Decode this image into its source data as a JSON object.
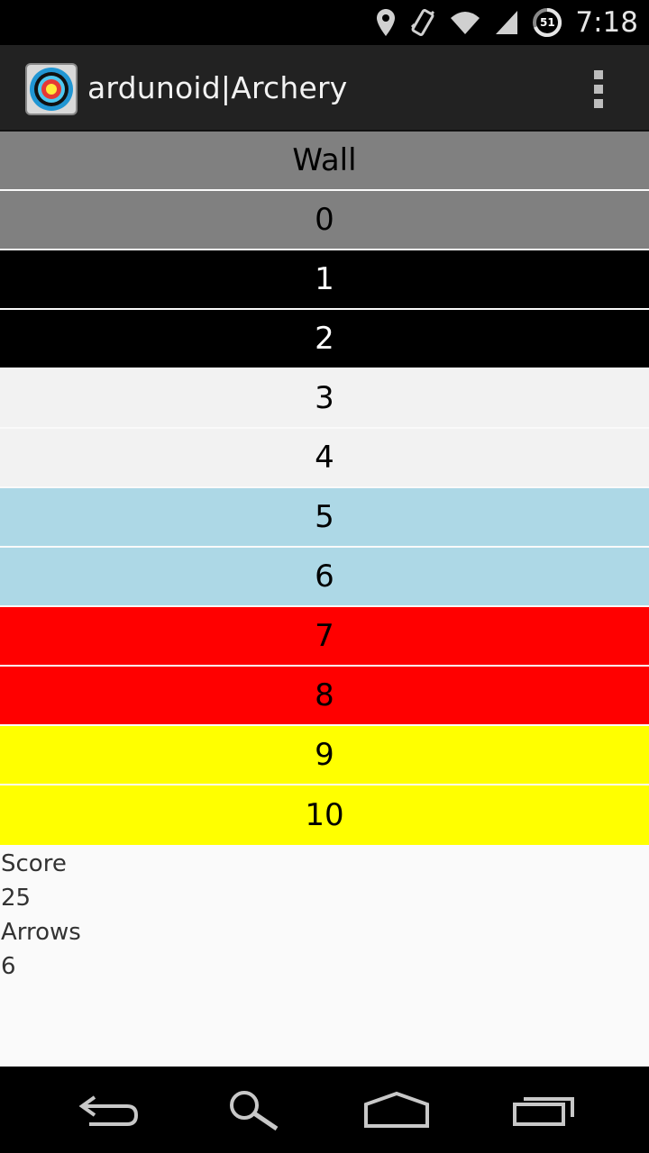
{
  "status_bar": {
    "time": "7:18",
    "battery_level": "51",
    "icons": [
      "location-icon",
      "vibrate-icon",
      "wifi-icon",
      "signal-icon",
      "battery-icon"
    ]
  },
  "app": {
    "title": "ardunoid|Archery",
    "icon": "archery-target-icon"
  },
  "rows": [
    {
      "label": "Wall",
      "bg": "#808080",
      "fg": "#000000"
    },
    {
      "label": "0",
      "bg": "#808080",
      "fg": "#000000"
    },
    {
      "label": "1",
      "bg": "#000000",
      "fg": "#ffffff"
    },
    {
      "label": "2",
      "bg": "#000000",
      "fg": "#ffffff"
    },
    {
      "label": "3",
      "bg": "#f2f2f2",
      "fg": "#000000"
    },
    {
      "label": "4",
      "bg": "#f2f2f2",
      "fg": "#000000"
    },
    {
      "label": "5",
      "bg": "#add8e6",
      "fg": "#000000"
    },
    {
      "label": "6",
      "bg": "#add8e6",
      "fg": "#000000"
    },
    {
      "label": "7",
      "bg": "#ff0000",
      "fg": "#000000"
    },
    {
      "label": "8",
      "bg": "#ff0000",
      "fg": "#000000"
    },
    {
      "label": "9",
      "bg": "#ffff00",
      "fg": "#000000"
    },
    {
      "label": "10",
      "bg": "#ffff00",
      "fg": "#000000"
    }
  ],
  "stats": {
    "score_label": "Score",
    "score_value": "25",
    "arrows_label": "Arrows",
    "arrows_value": "6"
  },
  "nav_bar": {
    "buttons": [
      "back-icon",
      "search-icon",
      "home-icon",
      "recent-apps-icon"
    ]
  }
}
